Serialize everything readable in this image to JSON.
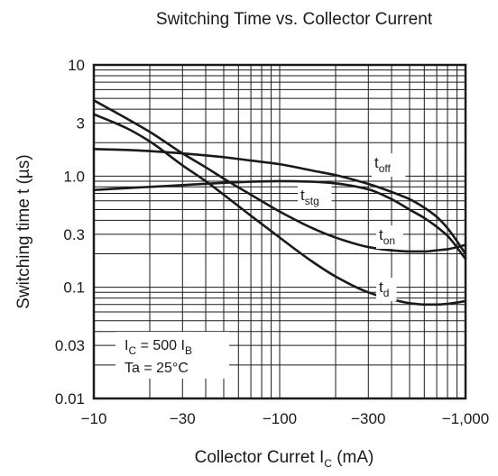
{
  "chart_data": {
    "type": "line",
    "title": "Switching Time vs. Collector Current",
    "xlabel": {
      "main": "Collector Curret  I",
      "sub": "C",
      "unit": "  (mA)"
    },
    "ylabel": "Switching time  t  (µs)",
    "x_scale": "log",
    "y_scale": "log",
    "xlim": [
      -10,
      -1000
    ],
    "ylim": [
      0.01,
      10
    ],
    "x_ticks": [
      {
        "value": -10,
        "label": "−10"
      },
      {
        "value": -30,
        "label": "−30"
      },
      {
        "value": -100,
        "label": "−100"
      },
      {
        "value": -300,
        "label": "−300"
      },
      {
        "value": -1000,
        "label": "−1,000"
      }
    ],
    "y_ticks": [
      {
        "value": 10,
        "label": "10"
      },
      {
        "value": 3,
        "label": "3"
      },
      {
        "value": 1,
        "label": "1.0"
      },
      {
        "value": 0.3,
        "label": "0.3"
      },
      {
        "value": 0.1,
        "label": "0.1"
      },
      {
        "value": 0.03,
        "label": "0.03"
      },
      {
        "value": 0.01,
        "label": "0.01"
      }
    ],
    "grid": true,
    "series": [
      {
        "name": "t",
        "sub": "off",
        "x": [
          -10,
          -15,
          -20,
          -30,
          -50,
          -70,
          -100,
          -150,
          -200,
          -300,
          -400,
          -500,
          -600,
          -700,
          -800,
          -1000
        ],
        "y": [
          1.75,
          1.72,
          1.68,
          1.6,
          1.48,
          1.38,
          1.28,
          1.12,
          1.02,
          0.85,
          0.72,
          0.62,
          0.52,
          0.43,
          0.34,
          0.2
        ]
      },
      {
        "name": "t",
        "sub": "stg",
        "x": [
          -10,
          -15,
          -20,
          -30,
          -50,
          -70,
          -100,
          -150,
          -200,
          -300,
          -400,
          -500,
          -600,
          -700,
          -800,
          -1000
        ],
        "y": [
          0.75,
          0.78,
          0.8,
          0.83,
          0.87,
          0.89,
          0.9,
          0.89,
          0.86,
          0.76,
          0.62,
          0.5,
          0.42,
          0.35,
          0.29,
          0.18
        ]
      },
      {
        "name": "t",
        "sub": "on",
        "x": [
          -10,
          -15,
          -20,
          -30,
          -40,
          -50,
          -70,
          -100,
          -150,
          -200,
          -300,
          -400,
          -500,
          -600,
          -700,
          -800,
          -1000
        ],
        "y": [
          4.8,
          3.3,
          2.5,
          1.6,
          1.2,
          0.95,
          0.68,
          0.48,
          0.34,
          0.28,
          0.23,
          0.215,
          0.21,
          0.21,
          0.215,
          0.22,
          0.24
        ]
      },
      {
        "name": "t",
        "sub": "d",
        "x": [
          -10,
          -15,
          -20,
          -30,
          -40,
          -50,
          -70,
          -100,
          -150,
          -200,
          -300,
          -400,
          -500,
          -600,
          -700,
          -800,
          -1000
        ],
        "y": [
          3.6,
          2.7,
          2.05,
          1.25,
          0.9,
          0.68,
          0.44,
          0.28,
          0.17,
          0.125,
          0.09,
          0.078,
          0.072,
          0.07,
          0.07,
          0.071,
          0.075
        ]
      }
    ],
    "annotations": [
      {
        "main": "I",
        "sub": "C",
        "rest": " = 500 I",
        "sub2": "B"
      },
      {
        "main": "Ta = 25°C"
      }
    ]
  }
}
